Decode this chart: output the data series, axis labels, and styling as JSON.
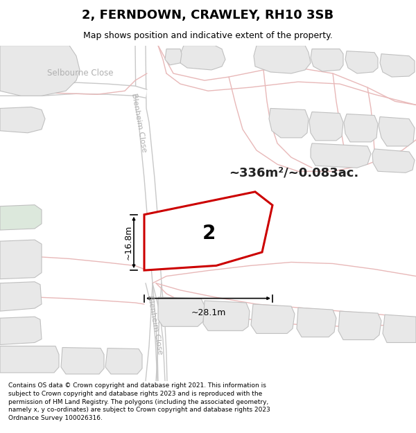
{
  "title": "2, FERNDOWN, CRAWLEY, RH10 3SB",
  "subtitle": "Map shows position and indicative extent of the property.",
  "footer": "Contains OS data © Crown copyright and database right 2021. This information is subject to Crown copyright and database rights 2023 and is reproduced with the permission of HM Land Registry. The polygons (including the associated geometry, namely x, y co-ordinates) are subject to Crown copyright and database rights 2023 Ordnance Survey 100026316.",
  "area_label": "~336m²/~0.083ac.",
  "dim_width": "~28.1m",
  "dim_height": "~16.8m",
  "property_label": "2",
  "map_bg": "#ffffff",
  "road_color": "#e8b8b8",
  "road_color2": "#c8c8c8",
  "building_fill": "#e8e8e8",
  "building_edge": "#c0c0c0",
  "highlight_fill": "#ffffff",
  "highlight_edge": "#cc0000",
  "label_color": "#b0b0b0",
  "dim_color": "#222222",
  "area_color": "#222222",
  "title_fontsize": 13,
  "subtitle_fontsize": 9,
  "footer_fontsize": 6.5
}
